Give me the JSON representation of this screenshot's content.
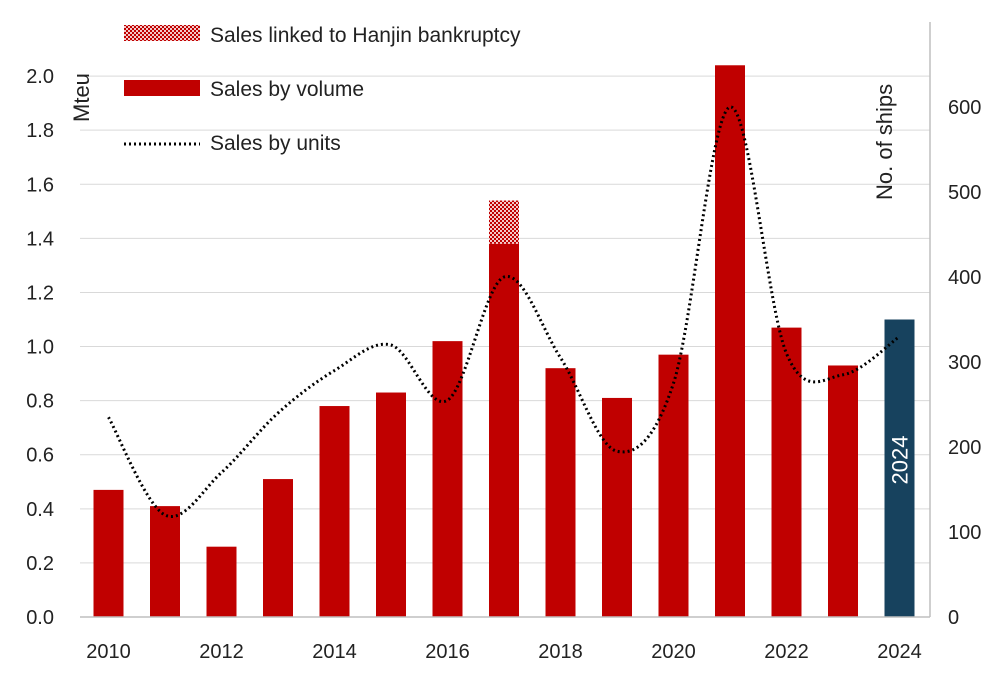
{
  "chart_data": {
    "type": "bar",
    "title": "",
    "ylabel": "Mteu",
    "y2label": "No. of ships",
    "ylim": [
      0,
      2.2
    ],
    "y2lim": [
      0,
      700
    ],
    "yticks": [
      "0.0",
      "0.2",
      "0.4",
      "0.6",
      "0.8",
      "1.0",
      "1.2",
      "1.4",
      "1.6",
      "1.8",
      "2.0"
    ],
    "y2ticks": [
      "0",
      "100",
      "200",
      "300",
      "400",
      "500",
      "600"
    ],
    "categories": [
      "2010",
      "2011",
      "2012",
      "2013",
      "2014",
      "2015",
      "2016",
      "2017",
      "2018",
      "2019",
      "2020",
      "2021",
      "2022",
      "2023",
      "2024"
    ],
    "xtick_labels": [
      "2010",
      "2012",
      "2014",
      "2016",
      "2018",
      "2020",
      "2022",
      "2024"
    ],
    "series": [
      {
        "name": "Sales by volume",
        "axis": "left",
        "kind": "bar",
        "color": "#c00000",
        "values": [
          0.47,
          0.41,
          0.26,
          0.51,
          0.78,
          0.83,
          1.02,
          1.38,
          0.92,
          0.81,
          0.97,
          2.04,
          1.07,
          0.93,
          1.1
        ]
      },
      {
        "name": "Sales linked to Hanjin bankruptcy",
        "axis": "left",
        "kind": "bar-stacked",
        "pattern": "checker",
        "color": "#c00000",
        "values": [
          0,
          0,
          0,
          0,
          0,
          0,
          0,
          0.16,
          0,
          0,
          0,
          0,
          0,
          0,
          0
        ]
      },
      {
        "name": "Sales by units",
        "axis": "right",
        "kind": "line",
        "style": "dotted",
        "color": "#000000",
        "values": [
          235,
          120,
          170,
          240,
          290,
          320,
          255,
          400,
          305,
          195,
          275,
          600,
          310,
          285,
          330
        ]
      }
    ],
    "highlight": {
      "category": "2024",
      "color": "#17425e",
      "label": "2024"
    },
    "legend": {
      "position": "top-left",
      "items": [
        "Sales linked to Hanjin bankruptcy",
        "Sales by volume",
        "Sales by units"
      ]
    },
    "grid": true
  }
}
